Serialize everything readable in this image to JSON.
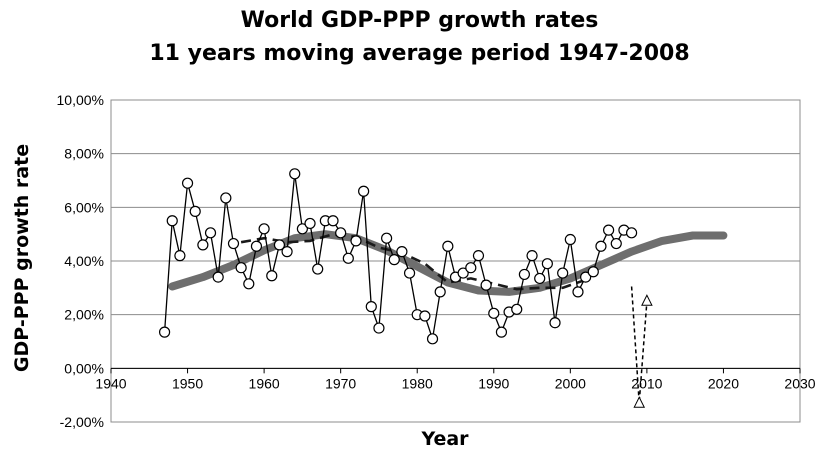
{
  "chart_data": {
    "type": "line",
    "title": "World GDP-PPP growth rates",
    "subtitle": "11 years moving average period 1947-2008",
    "xlabel": "Year",
    "ylabel": "GDP-PPP growth rate",
    "xlim": [
      1940,
      2030
    ],
    "ylim": [
      -2,
      10
    ],
    "x_ticks": [
      1940,
      1950,
      1960,
      1970,
      1980,
      1990,
      2000,
      2010,
      2020,
      2030
    ],
    "x_tick_labels": [
      "1940",
      "1950",
      "1960",
      "1970",
      "1980",
      "1990",
      "2000",
      "2010",
      "2020",
      "2030"
    ],
    "y_ticks": [
      -2,
      0,
      2,
      4,
      6,
      8,
      10
    ],
    "y_tick_labels": [
      "-2,00%",
      "0,00%",
      "2,00%",
      "4,00%",
      "6,00%",
      "8,00%",
      "10,00%"
    ],
    "grid": {
      "horizontal": true,
      "vertical": false
    },
    "legend": "none",
    "colors": {
      "annual": "#000000",
      "moving_average": "#1a1a1a",
      "trend": "#6e6e6e",
      "forecast": "#000000",
      "grid": "#8c8c8c"
    },
    "series": [
      {
        "style": "line-with-open-circles",
        "x": [
          1947,
          1948,
          1949,
          1950,
          1951,
          1952,
          1953,
          1954,
          1955,
          1956,
          1957,
          1958,
          1959,
          1960,
          1961,
          1962,
          1963,
          1964,
          1965,
          1966,
          1967,
          1968,
          1969,
          1970,
          1971,
          1972,
          1973,
          1974,
          1975,
          1976,
          1977,
          1978,
          1979,
          1980,
          1981,
          1982,
          1983,
          1984,
          1985,
          1986,
          1987,
          1988,
          1989,
          1990,
          1991,
          1992,
          1993,
          1994,
          1995,
          1996,
          1997,
          1998,
          1999,
          2000,
          2001,
          2002,
          2003,
          2004,
          2005,
          2006,
          2007,
          2008
        ],
        "y": [
          1.35,
          5.5,
          4.2,
          6.9,
          5.85,
          4.6,
          5.05,
          3.4,
          6.35,
          4.65,
          3.75,
          3.15,
          4.55,
          5.2,
          3.45,
          4.6,
          4.35,
          7.25,
          5.2,
          5.4,
          3.7,
          5.5,
          5.5,
          5.05,
          4.1,
          4.75,
          6.6,
          2.3,
          1.5,
          4.85,
          4.05,
          4.35,
          3.55,
          2.0,
          1.95,
          1.1,
          2.85,
          4.55,
          3.4,
          3.55,
          3.75,
          4.2,
          3.1,
          2.05,
          1.35,
          2.1,
          2.2,
          3.5,
          4.2,
          3.35,
          3.9,
          1.7,
          3.55,
          4.8,
          2.85,
          3.4,
          3.6,
          4.55,
          5.15,
          4.65,
          5.15,
          5.05
        ]
      },
      {
        "style": "dashed-line",
        "x": [
          1957,
          1960,
          1963,
          1966,
          1969,
          1972,
          1975,
          1978,
          1981,
          1984,
          1987,
          1990,
          1993,
          1996,
          1999,
          2002,
          2003
        ],
        "y": [
          4.7,
          4.85,
          4.7,
          4.75,
          5.0,
          4.9,
          4.5,
          4.3,
          3.9,
          3.2,
          3.35,
          3.15,
          2.95,
          3.0,
          3.0,
          3.3,
          3.55
        ]
      },
      {
        "style": "thick-gray-curve",
        "x": [
          1948,
          1952,
          1956,
          1960,
          1964,
          1968,
          1972,
          1976,
          1980,
          1984,
          1988,
          1992,
          1996,
          2000,
          2004,
          2008,
          2012,
          2016,
          2020
        ],
        "y": [
          3.05,
          3.4,
          3.85,
          4.4,
          4.85,
          5.0,
          4.85,
          4.4,
          3.8,
          3.2,
          2.9,
          2.85,
          3.0,
          3.35,
          3.85,
          4.35,
          4.75,
          4.95,
          4.95
        ]
      },
      {
        "style": "dashed-with-open-triangles",
        "x": [
          2008,
          2009,
          2010
        ],
        "y": [
          3.05,
          -1.3,
          2.5
        ]
      }
    ]
  }
}
